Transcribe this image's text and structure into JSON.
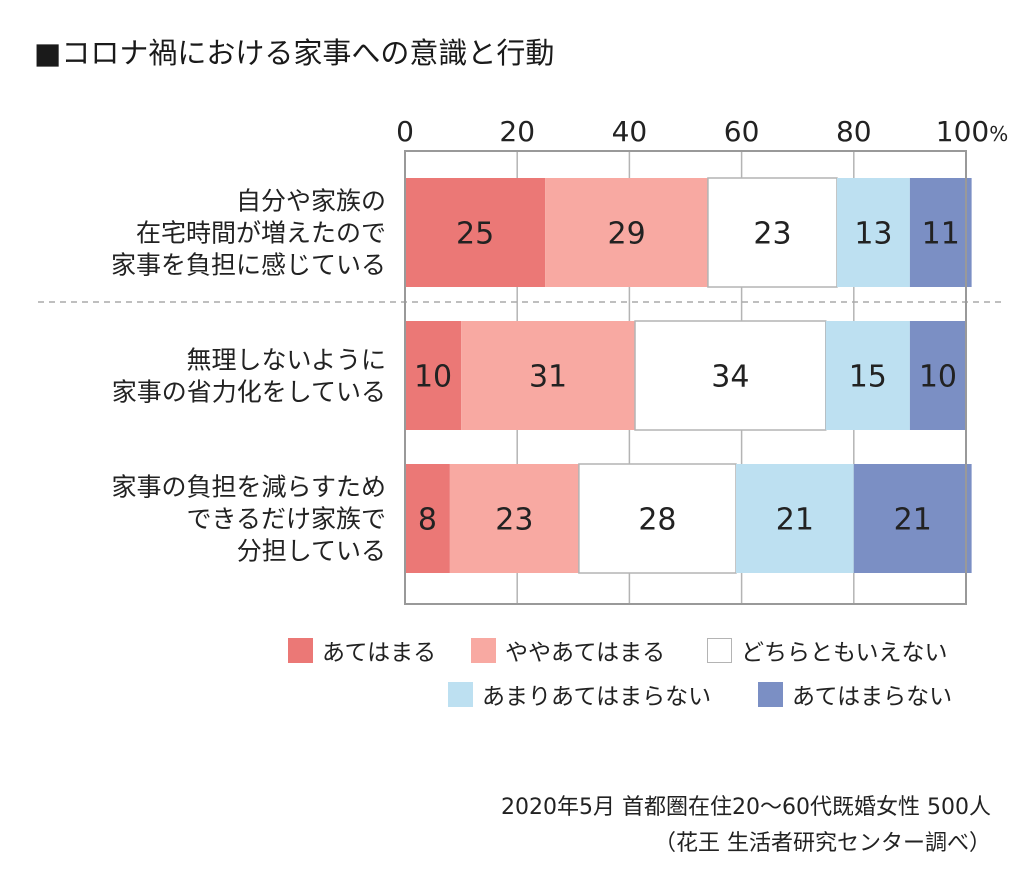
{
  "chart_data": {
    "type": "bar",
    "orientation": "horizontal",
    "stacked": true,
    "percent": true,
    "title": "■コロナ禍における家事への意識と行動",
    "categories": [
      [
        "自分や家族の",
        "在宅時間が増えたので",
        "家事を負担に感じている"
      ],
      [
        "無理しないように",
        "家事の省力化をしている"
      ],
      [
        "家事の負担を減らすため",
        "できるだけ家族で",
        "分担している"
      ]
    ],
    "series": [
      {
        "name": "あてはまる",
        "values": [
          25,
          10,
          8
        ],
        "color": "#eb7876"
      },
      {
        "name": "ややあてはまる",
        "values": [
          29,
          31,
          23
        ],
        "color": "#f8a9a2"
      },
      {
        "name": "どちらともいえない",
        "values": [
          23,
          34,
          28
        ],
        "color": "#ffffff"
      },
      {
        "name": "あまりあてはまらない",
        "values": [
          13,
          15,
          21
        ],
        "color": "#bde0f1"
      },
      {
        "name": "あてはまらない",
        "values": [
          11,
          10,
          21
        ],
        "color": "#7b8fc4"
      }
    ],
    "xlim": [
      0,
      100
    ],
    "xticks": [
      "0",
      "20",
      "40",
      "60",
      "80",
      "100%"
    ],
    "grid": true,
    "legend_position": "bottom-right"
  },
  "notes": {
    "survey": "2020年5月 首都圏在住20～60代既婚女性 500人",
    "source": "（花王 生活者研究センター調べ）"
  }
}
